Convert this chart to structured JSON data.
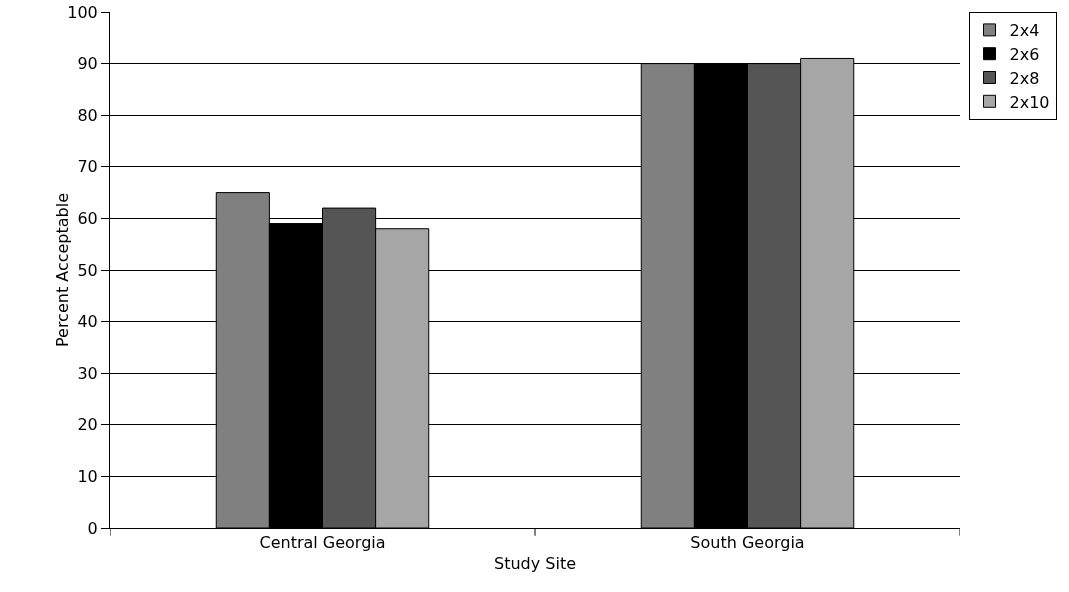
{
  "chart_data": {
    "type": "bar",
    "xlabel": "Study Site",
    "ylabel": "Percent Acceptable",
    "categories": [
      "Central Georgia",
      "South Georgia"
    ],
    "series": [
      {
        "name": "2x4",
        "color": "#808080",
        "values": [
          65,
          90
        ]
      },
      {
        "name": "2x6",
        "color": "#000000",
        "values": [
          59,
          90
        ]
      },
      {
        "name": "2x8",
        "color": "#555555",
        "values": [
          62,
          90
        ]
      },
      {
        "name": "2x10",
        "color": "#a6a6a6",
        "values": [
          58,
          91
        ]
      }
    ],
    "ylim": [
      0,
      100
    ],
    "yticks": [
      0,
      10,
      20,
      30,
      40,
      50,
      60,
      70,
      80,
      90,
      100
    ],
    "grid": "y",
    "legend": "right"
  }
}
